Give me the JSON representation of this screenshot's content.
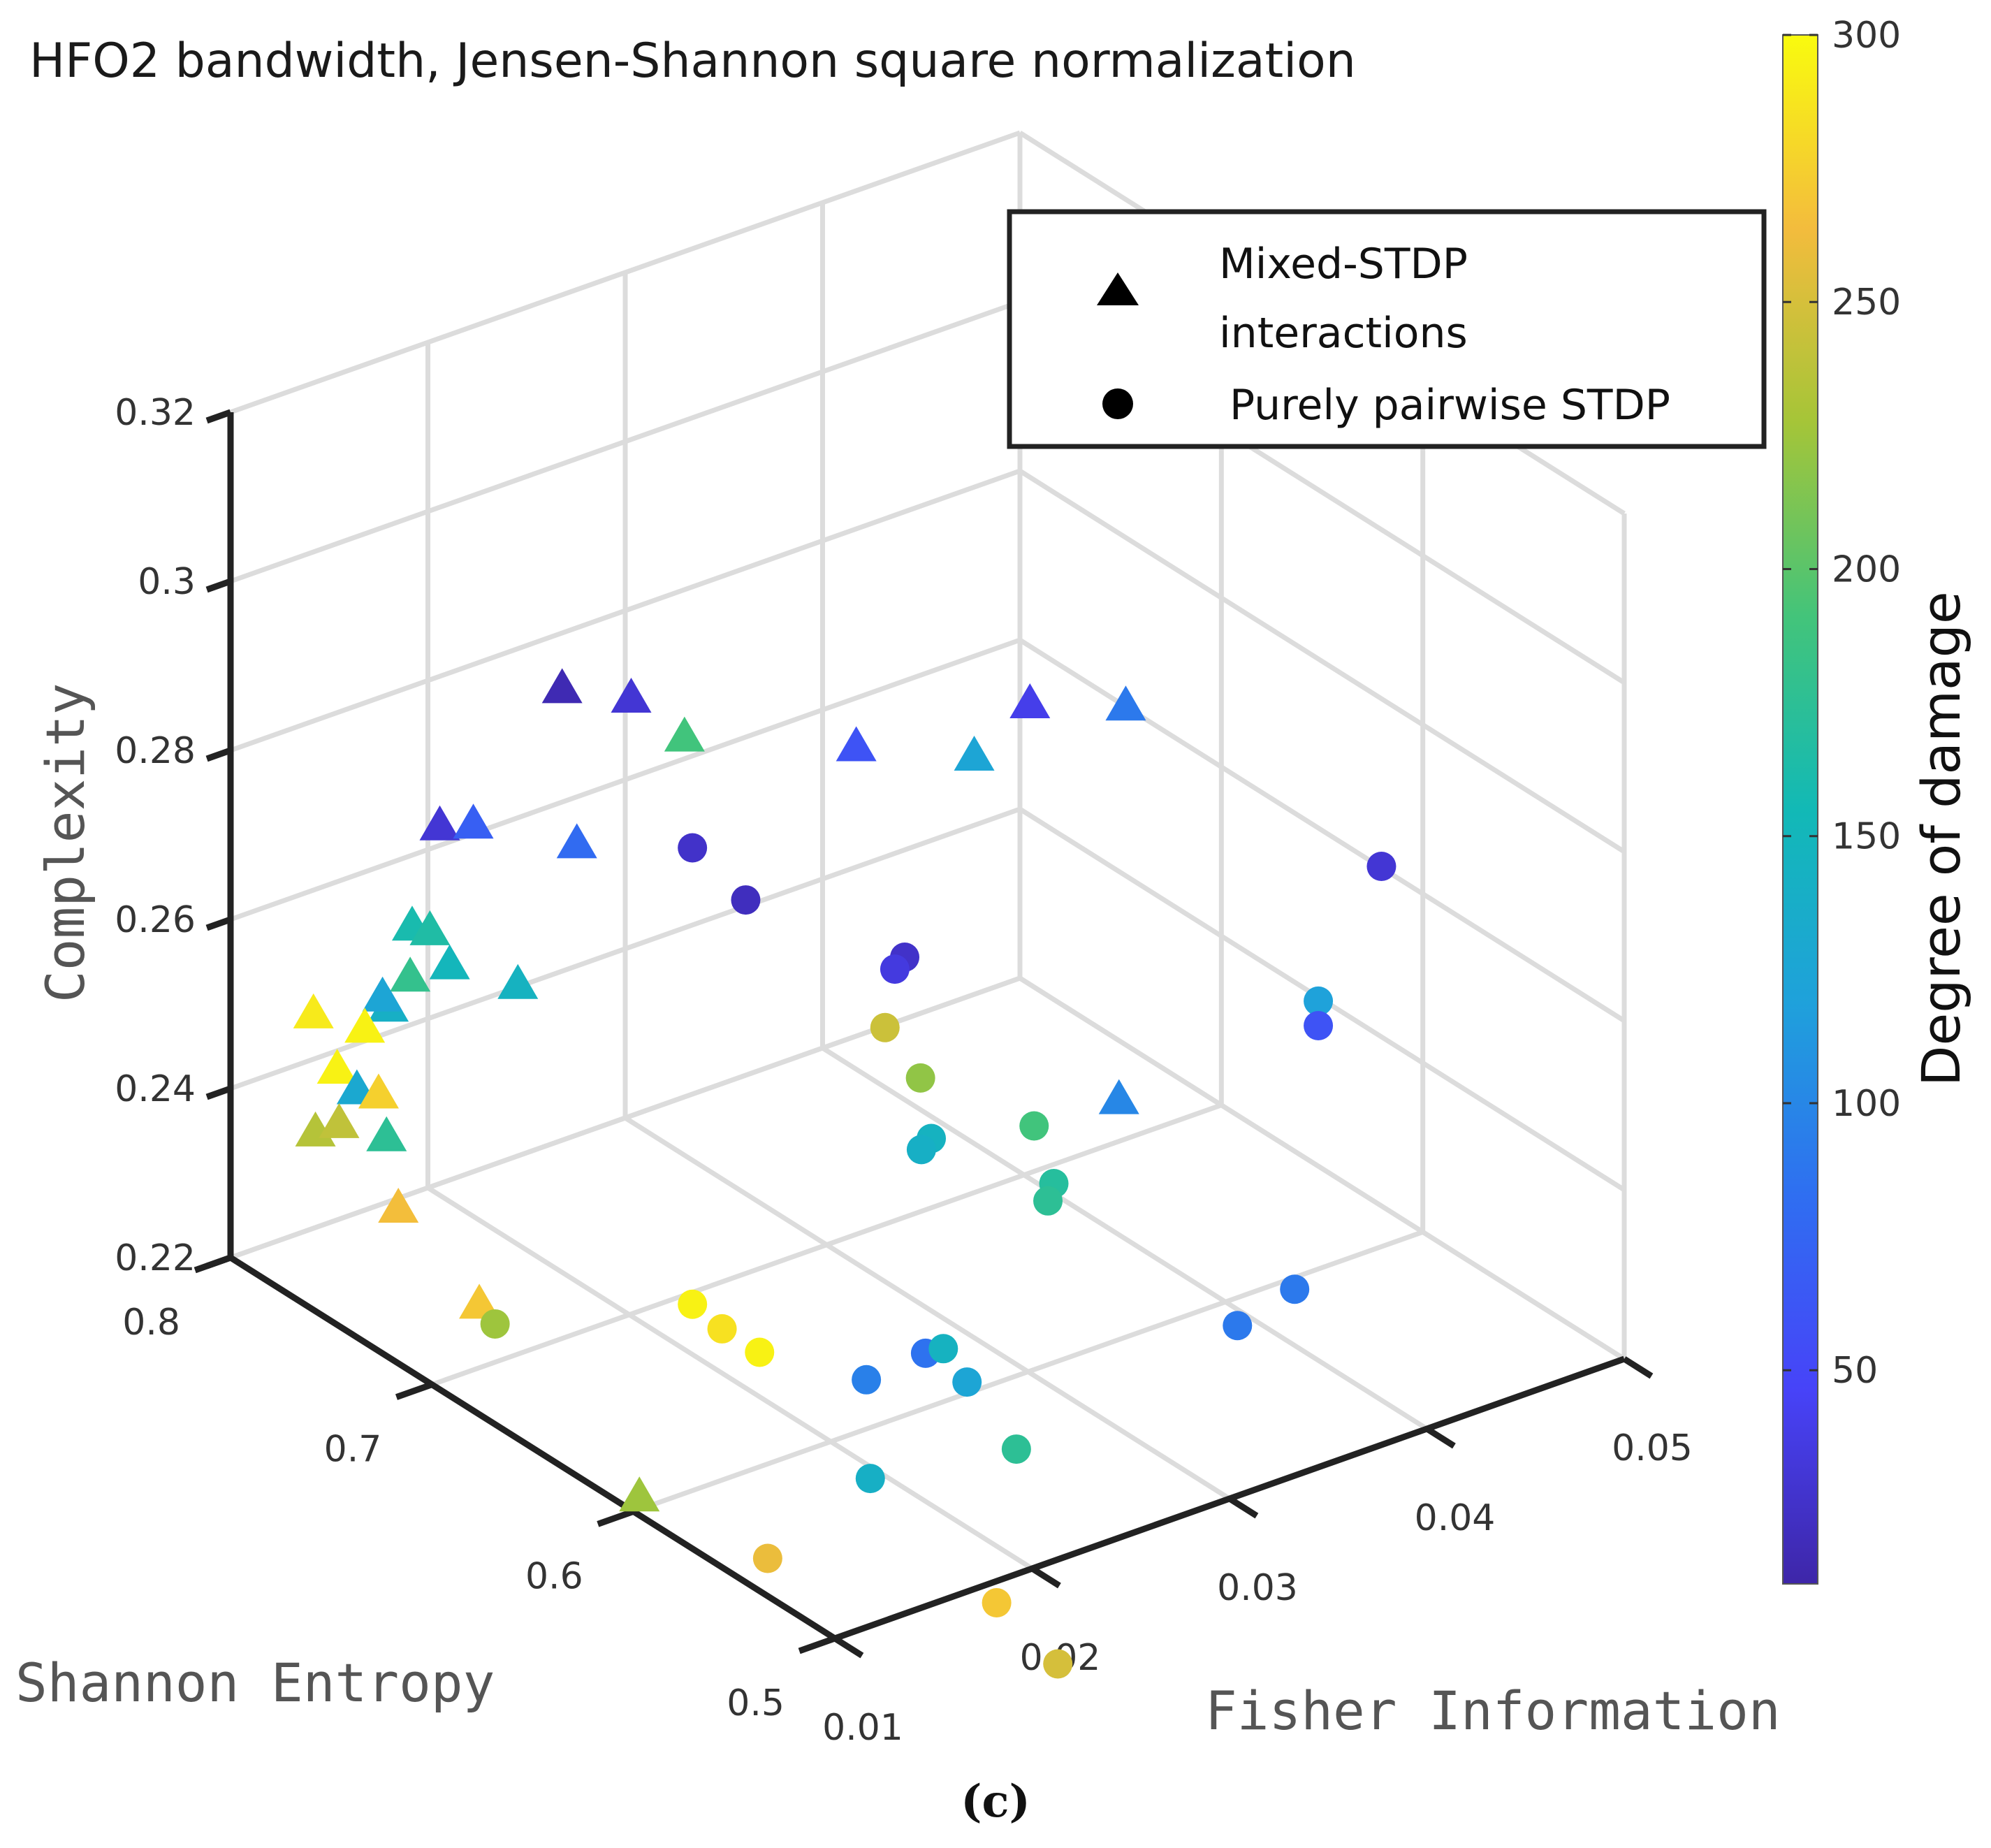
{
  "chart_data": {
    "type": "scatter3d",
    "title": "HFO2 bandwidth, Jensen-Shannon square normalization",
    "caption": "(c)",
    "xlabel": "Fisher Information",
    "ylabel": "Shannon Entropy",
    "zlabel": "Complexity",
    "colorbar_label": "Degree of damage",
    "xlim": [
      0.01,
      0.05
    ],
    "ylim": [
      0.5,
      0.8
    ],
    "zlim": [
      0.22,
      0.32
    ],
    "clim": [
      10,
      300
    ],
    "x_ticks": [
      "0.01",
      "0.02",
      "0.03",
      "0.04",
      "0.05"
    ],
    "y_ticks": [
      "0.5",
      "0.6",
      "0.7",
      "0.8"
    ],
    "z_ticks": [
      "0.22",
      "0.24",
      "0.26",
      "0.28",
      "0.3",
      "0.32"
    ],
    "colorbar_ticks": [
      "50",
      "100",
      "150",
      "200",
      "250",
      "300"
    ],
    "legend": [
      {
        "marker": "triangle",
        "label_line1": "Mixed-STDP",
        "label_line2": "interactions"
      },
      {
        "marker": "circle",
        "label_line1": "Purely pairwise STDP",
        "label_line2": ""
      }
    ],
    "series": [
      {
        "name": "Mixed-STDP interactions",
        "marker": "triangle",
        "points": [
          [
            0.0247,
            0.7794,
            0.2781,
            15
          ],
          [
            0.0258,
            0.7559,
            0.2796,
            30
          ],
          [
            0.0264,
            0.7353,
            0.2776,
            190
          ],
          [
            0.0306,
            0.6912,
            0.2796,
            60
          ],
          [
            0.0332,
            0.6581,
            0.2813,
            125
          ],
          [
            0.0364,
            0.6618,
            0.2843,
            40
          ],
          [
            0.039,
            0.6397,
            0.2852,
            90
          ],
          [
            0.0185,
            0.7794,
            0.267,
            30
          ],
          [
            0.0202,
            0.7794,
            0.2658,
            70
          ],
          [
            0.0232,
            0.7574,
            0.2643,
            80
          ],
          [
            0.0334,
            0.5882,
            0.251,
            100
          ],
          [
            0.0171,
            0.7794,
            0.2563,
            160
          ],
          [
            0.018,
            0.7794,
            0.255,
            165
          ],
          [
            0.0175,
            0.7647,
            0.2536,
            150
          ],
          [
            0.0187,
            0.7426,
            0.2536,
            145
          ],
          [
            0.0159,
            0.7794,
            0.2477,
            140
          ],
          [
            0.0185,
            0.7941,
            0.2469,
            180
          ],
          [
            0.0171,
            0.7941,
            0.2457,
            125
          ],
          [
            0.0136,
            0.7941,
            0.2466,
            290
          ],
          [
            0.0147,
            0.7794,
            0.2462,
            295
          ],
          [
            0.0133,
            0.7794,
            0.2425,
            295
          ],
          [
            0.0158,
            0.7941,
            0.2358,
            130
          ],
          [
            0.0169,
            0.7941,
            0.2344,
            275
          ],
          [
            0.0122,
            0.7794,
            0.236,
            235
          ],
          [
            0.0134,
            0.7794,
            0.236,
            240
          ],
          [
            0.0143,
            0.7647,
            0.2359,
            175
          ],
          [
            0.0134,
            0.75,
            0.2304,
            265
          ],
          [
            0.013,
            0.7059,
            0.226,
            270
          ],
          [
            0.0121,
            0.6176,
            0.2172,
            225
          ]
        ]
      },
      {
        "name": "Purely pairwise STDP",
        "marker": "circle",
        "points": [
          [
            0.0482,
            0.6029,
            0.2643,
            30
          ],
          [
            0.042,
            0.5735,
            0.2579,
            120
          ],
          [
            0.042,
            0.5735,
            0.255,
            60
          ],
          [
            0.0348,
            0.5147,
            0.2386,
            90
          ],
          [
            0.0319,
            0.5147,
            0.2367,
            90
          ],
          [
            0.0308,
            0.6691,
            0.258,
            25
          ],
          [
            0.0303,
            0.6691,
            0.257,
            35
          ],
          [
            0.0265,
            0.7059,
            0.2628,
            20
          ],
          [
            0.0268,
            0.7353,
            0.2643,
            25
          ],
          [
            0.0298,
            0.6691,
            0.2505,
            245
          ],
          [
            0.0301,
            0.6544,
            0.2465,
            220
          ],
          [
            0.0321,
            0.6176,
            0.2447,
            190
          ],
          [
            0.0316,
            0.6029,
            0.2405,
            170
          ],
          [
            0.0299,
            0.6471,
            0.2406,
            145
          ],
          [
            0.0294,
            0.6471,
            0.2397,
            140
          ],
          [
            0.0313,
            0.6029,
            0.2387,
            175
          ],
          [
            0.0251,
            0.6029,
            0.2258,
            85
          ],
          [
            0.026,
            0.6029,
            0.2256,
            145
          ],
          [
            0.0257,
            0.5882,
            0.2241,
            125
          ],
          [
            0.0252,
            0.5588,
            0.221,
            175
          ],
          [
            0.0236,
            0.6176,
            0.2217,
            95
          ],
          [
            0.0208,
            0.6765,
            0.2241,
            295
          ],
          [
            0.0208,
            0.6618,
            0.2234,
            285
          ],
          [
            0.0212,
            0.6471,
            0.2225,
            295
          ],
          [
            0.0223,
            0.6029,
            0.2133,
            140
          ],
          [
            0.0227,
            0.5441,
            0.2071,
            270
          ],
          [
            0.0228,
            0.5147,
            0.2042,
            250
          ],
          [
            0.0186,
            0.6176,
            0.2047,
            260
          ],
          [
            0.0183,
            0.75,
            0.2128,
            225
          ]
        ]
      }
    ]
  }
}
